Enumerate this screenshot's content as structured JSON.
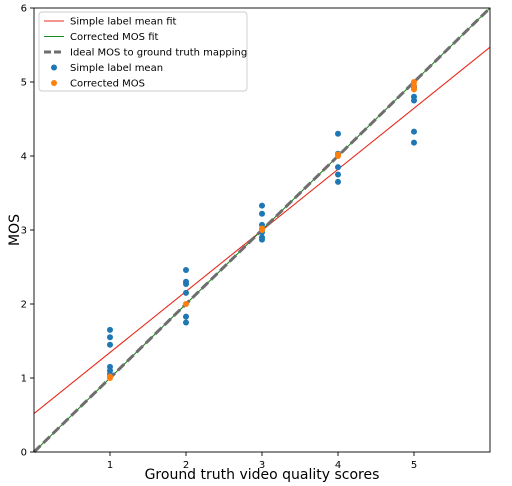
{
  "chart_data": {
    "type": "scatter",
    "xlabel": "Ground truth video quality scores",
    "ylabel": "MOS",
    "xlim": [
      0,
      6
    ],
    "ylim": [
      0,
      6
    ],
    "xticks": [
      1,
      2,
      3,
      4,
      5
    ],
    "yticks": [
      0,
      1,
      2,
      3,
      4,
      5,
      6
    ],
    "grid": false,
    "legend_position": "top-left",
    "series": [
      {
        "name": "Simple label mean fit",
        "kind": "line",
        "color": "#e8291c",
        "dash": "solid",
        "x": [
          0,
          6
        ],
        "y": [
          0.52,
          5.47
        ]
      },
      {
        "name": "Corrected MOS fit",
        "kind": "line",
        "color": "#1a8a1a",
        "dash": "solid",
        "x": [
          0,
          6
        ],
        "y": [
          0,
          6
        ]
      },
      {
        "name": "Ideal MOS to ground truth mapping",
        "kind": "line",
        "color": "#6e6e6e",
        "dash": "dashed",
        "x": [
          0,
          6
        ],
        "y": [
          0,
          6
        ]
      },
      {
        "name": "Simple label mean",
        "kind": "scatter",
        "color": "#1f77b4",
        "x": [
          1,
          1,
          1,
          1,
          1,
          1,
          2,
          2,
          2,
          2,
          2,
          2,
          3,
          3,
          3,
          3,
          3,
          3,
          4,
          4,
          4,
          4,
          4,
          5,
          5,
          5,
          5,
          5
        ],
        "y": [
          1.65,
          1.55,
          1.45,
          1.15,
          1.1,
          1.05,
          2.46,
          2.3,
          2.27,
          2.15,
          1.83,
          1.75,
          3.33,
          3.22,
          3.07,
          2.97,
          2.9,
          2.87,
          4.3,
          3.85,
          3.75,
          3.65,
          4.03,
          4.33,
          4.18,
          4.8,
          4.75,
          4.93
        ]
      },
      {
        "name": "Corrected MOS",
        "kind": "scatter",
        "color": "#ff7f0e",
        "x": [
          1,
          1,
          2,
          3,
          3,
          4,
          4,
          5,
          5,
          5
        ],
        "y": [
          1.0,
          1.02,
          2.0,
          3.0,
          3.02,
          4.0,
          4.02,
          5.0,
          4.95,
          4.9
        ]
      }
    ]
  }
}
